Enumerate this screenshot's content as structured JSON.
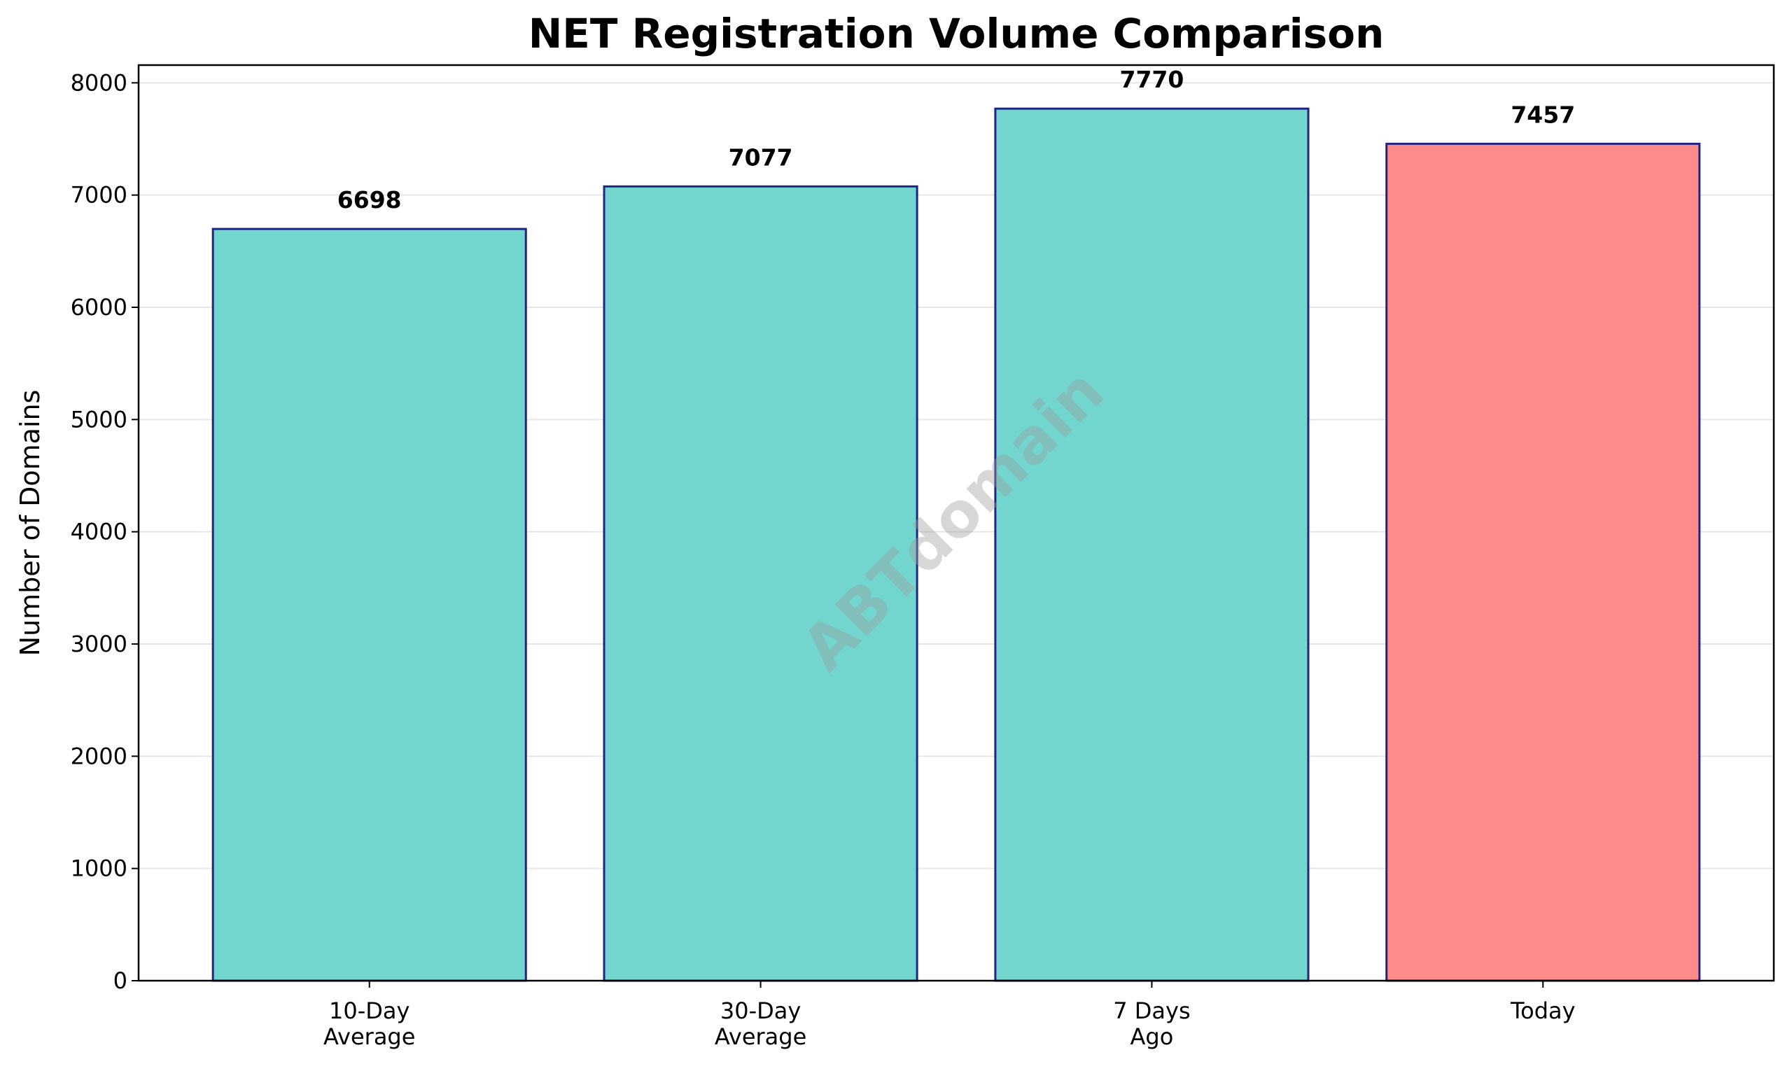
{
  "chart_data": {
    "type": "bar",
    "title": "NET Registration Volume Comparison",
    "y_label": "Number of Domains",
    "watermark": "ABTdomain",
    "categories": [
      "10-Day\nAverage",
      "30-Day\nAverage",
      "7 Days\nAgo",
      "Today"
    ],
    "values": [
      6698,
      7077,
      7770,
      7457
    ],
    "colors": [
      "#72d6cf",
      "#72d6cf",
      "#72d6cf",
      "#ff8a8a"
    ],
    "edge_color": "#1f2580",
    "ylim": [
      0,
      8158
    ],
    "yticks": [
      0,
      1000,
      2000,
      3000,
      4000,
      5000,
      6000,
      7000,
      8000
    ],
    "grid": true
  }
}
